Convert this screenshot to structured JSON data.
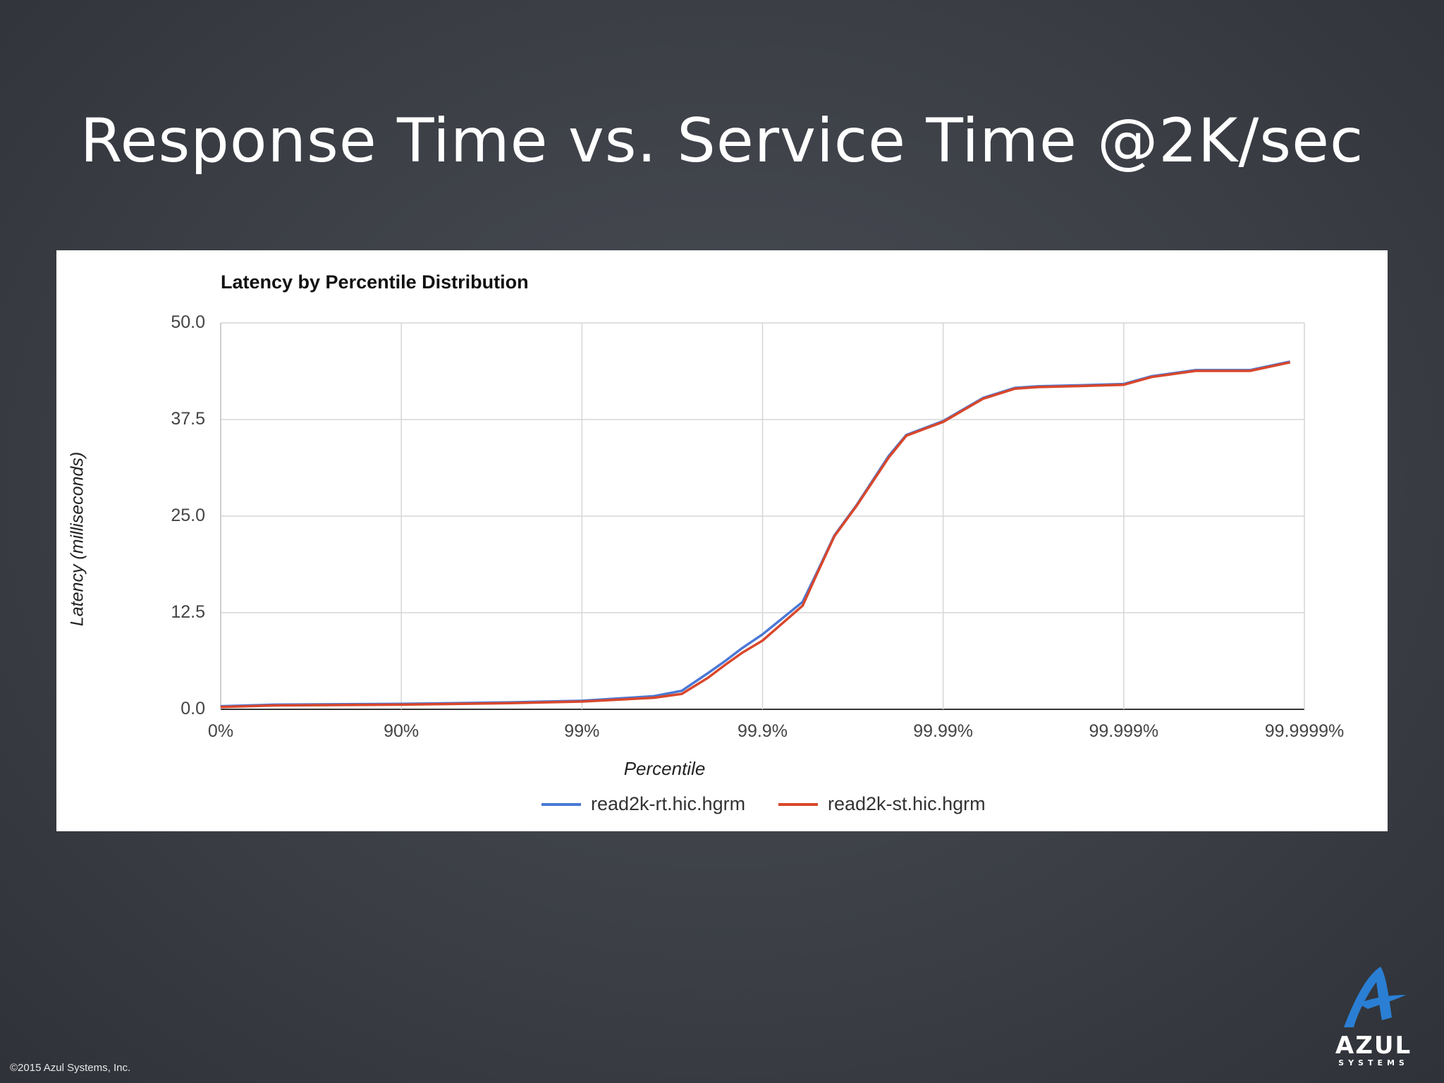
{
  "slide": {
    "title": "Response Time vs. Service Time @2K/sec",
    "copyright": "©2015 Azul Systems, Inc.",
    "logo": {
      "word": "AZUL",
      "sub": "SYSTEMS",
      "color": "#2a7fd4"
    }
  },
  "chart_data": {
    "type": "line",
    "title": "Latency by Percentile Distribution",
    "xlabel": "Percentile",
    "ylabel": "Latency (milliseconds)",
    "x_scale": "log-percentile",
    "x_tick_labels": [
      "0%",
      "90%",
      "99%",
      "99.9%",
      "99.99%",
      "99.999%",
      "99.9999%"
    ],
    "y_ticks": [
      "0.0",
      "12.5",
      "25.0",
      "37.5",
      "50.0"
    ],
    "ylim": [
      0,
      50
    ],
    "grid": true,
    "legend": "bottom",
    "series": [
      {
        "name": "read2k-rt.hic.hgrm",
        "color": "#4a78d6",
        "x": [
          "0%",
          "50%",
          "90%",
          "97.5%",
          "99%",
          "99.6%",
          "99.72%",
          "99.8%",
          "99.84%",
          "99.87%",
          "99.9%",
          "99.94%",
          "99.95%",
          "99.96%",
          "99.97%",
          "99.98%",
          "99.984%",
          "99.99%",
          "99.994%",
          "99.996%",
          "99.997%",
          "99.998%",
          "99.999%",
          "99.9993%",
          "99.9996%",
          "99.9998%",
          "99.99988%"
        ],
        "values": [
          0.4,
          0.6,
          0.7,
          0.9,
          1.1,
          1.7,
          2.4,
          4.7,
          6.3,
          7.9,
          9.7,
          13.9,
          17.7,
          22.5,
          26.5,
          32.8,
          35.5,
          37.3,
          40.3,
          41.6,
          41.8,
          41.9,
          42.1,
          43.1,
          43.9,
          43.9,
          45.0
        ]
      },
      {
        "name": "read2k-st.hic.hgrm",
        "color": "#d9472b",
        "x": [
          "0%",
          "50%",
          "90%",
          "97.5%",
          "99%",
          "99.6%",
          "99.72%",
          "99.8%",
          "99.84%",
          "99.87%",
          "99.9%",
          "99.94%",
          "99.95%",
          "99.96%",
          "99.97%",
          "99.98%",
          "99.984%",
          "99.99%",
          "99.994%",
          "99.996%",
          "99.997%",
          "99.998%",
          "99.999%",
          "99.9993%",
          "99.9996%",
          "99.9998%",
          "99.99988%"
        ],
        "values": [
          0.3,
          0.5,
          0.6,
          0.8,
          1.0,
          1.5,
          2.0,
          4.1,
          5.8,
          7.3,
          8.9,
          13.4,
          17.5,
          22.4,
          26.4,
          32.6,
          35.4,
          37.2,
          40.2,
          41.5,
          41.7,
          41.8,
          42.0,
          43.0,
          43.8,
          43.8,
          44.9
        ]
      }
    ]
  }
}
